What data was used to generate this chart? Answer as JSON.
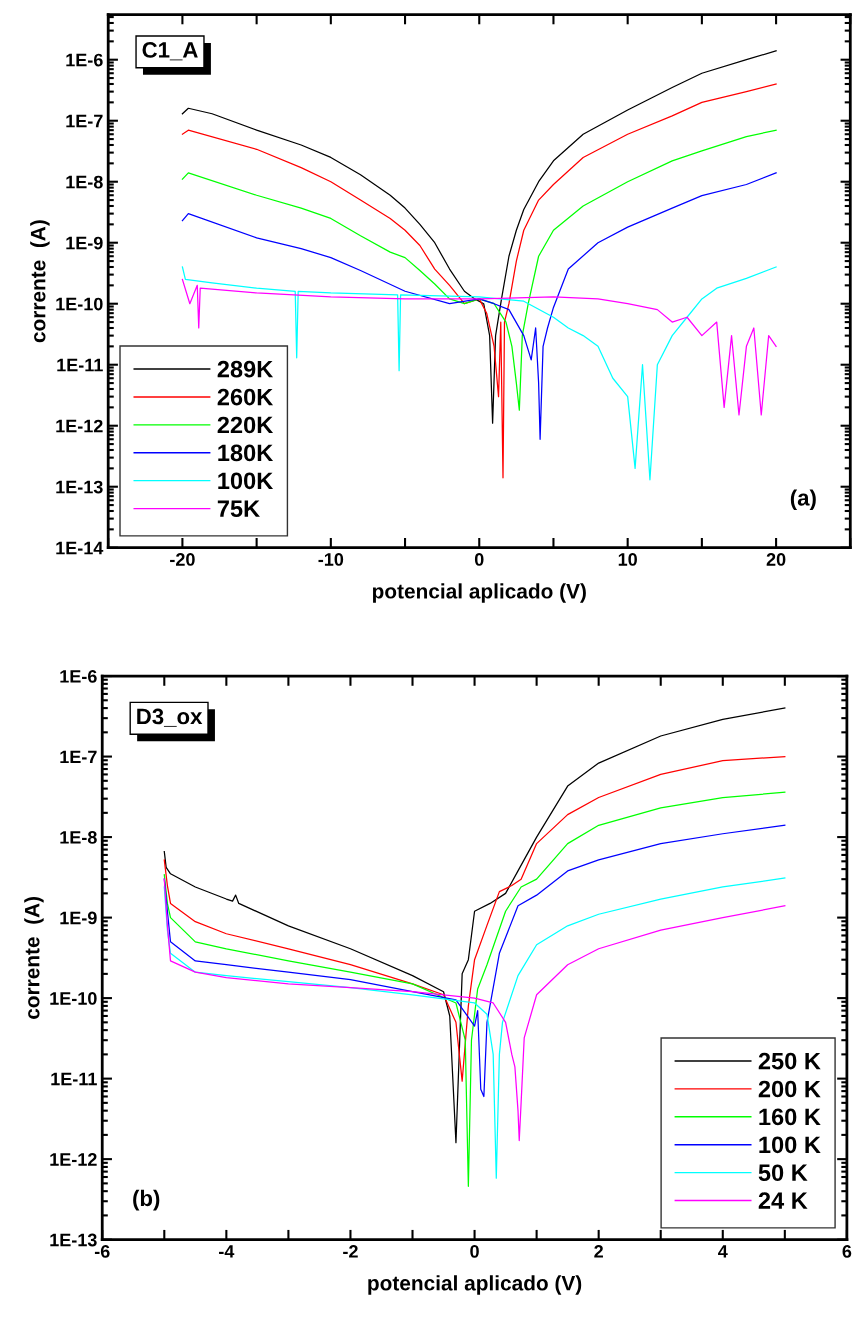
{
  "chart_data": [
    {
      "type": "line",
      "xlabel": "potencial aplicado (V)",
      "ylabel": "corrente  (A)",
      "log": "y",
      "legend": "bottom left",
      "grid": false,
      "xlim": [
        -25,
        25
      ],
      "xticks": [
        {
          "value": -25,
          "label": null
        },
        -20,
        {
          "value": -15,
          "label": null
        },
        -10,
        {
          "value": -5,
          "label": null
        },
        0,
        {
          "value": 5,
          "label": null
        },
        10,
        {
          "value": 15,
          "label": null
        },
        20,
        {
          "value": 25,
          "label": null
        }
      ],
      "ylim": [
        1e-14,
        5.5e-06
      ],
      "yticks": [
        {
          "value": 1e-14,
          "label": "1E-14"
        },
        {
          "value": 1e-13,
          "label": "1E-13"
        },
        {
          "value": 1e-12,
          "label": "1E-12"
        },
        {
          "value": 1e-11,
          "label": "1E-11"
        },
        {
          "value": 1e-10,
          "label": "1E-10"
        },
        {
          "value": 1e-09,
          "label": "1E-9"
        },
        {
          "value": 1e-08,
          "label": "1E-8"
        },
        {
          "value": 1e-07,
          "label": "1E-7"
        },
        {
          "value": 1e-06,
          "label": "1E-6"
        }
      ],
      "annotations": [
        "C1_A",
        "(a)"
      ],
      "series": [
        {
          "name": "289K",
          "color": "#000000",
          "x": [
            -20,
            -19.6,
            -18,
            -15,
            -12,
            -10,
            -8,
            -6,
            -5,
            -4,
            -3,
            -2,
            -1,
            -0.3,
            0.3,
            0.7,
            0.9,
            1.1,
            1.5,
            2,
            2.5,
            3,
            4,
            5,
            7,
            10,
            13,
            15,
            18,
            20
          ],
          "values": [
            1.3e-07,
            1.6e-07,
            1.3e-07,
            7e-08,
            4e-08,
            2.5e-08,
            1.3e-08,
            6e-09,
            3.7e-09,
            2e-09,
            1e-09,
            3.7e-10,
            1.6e-10,
            1.2e-10,
            1e-10,
            3e-11,
            1.1e-12,
            3e-11,
            1.2e-10,
            6e-10,
            1.6e-09,
            3.5e-09,
            1e-08,
            2.2e-08,
            6e-08,
            1.5e-07,
            3.5e-07,
            6e-07,
            1e-06,
            1.4e-06
          ]
        },
        {
          "name": "260K",
          "color": "#ff0000",
          "x": [
            -20,
            -19.6,
            -15,
            -12,
            -10,
            -8,
            -6,
            -5,
            -4,
            -3,
            -2,
            -1,
            0,
            0.5,
            1,
            1.3,
            1.45,
            1.6,
            1.7,
            2,
            2.5,
            3,
            4,
            5,
            7,
            10,
            13,
            15,
            18,
            20
          ],
          "values": [
            6e-08,
            7e-08,
            3.4e-08,
            1.7e-08,
            1e-08,
            5e-09,
            2.5e-09,
            1.6e-09,
            9e-10,
            3.7e-10,
            2e-10,
            1e-10,
            1.2e-10,
            7e-11,
            2e-11,
            3e-12,
            5e-11,
            1.4e-13,
            5e-11,
            1e-10,
            5e-10,
            1.6e-09,
            5e-09,
            9e-09,
            2.5e-08,
            6e-08,
            1.2e-07,
            2e-07,
            3e-07,
            4e-07
          ]
        },
        {
          "name": "220K",
          "color": "#00ff00",
          "x": [
            -20,
            -19.6,
            -15,
            -12,
            -10,
            -8,
            -6,
            -5,
            -4,
            -3,
            -2,
            -1,
            0,
            1,
            1.8,
            2.2,
            2.5,
            2.7,
            2.9,
            3.3,
            4,
            5,
            7,
            10,
            13,
            15,
            18,
            20
          ],
          "values": [
            1.1e-08,
            1.4e-08,
            6e-09,
            3.7e-09,
            2.5e-09,
            1.3e-09,
            7e-10,
            5.7e-10,
            3.5e-10,
            2.1e-10,
            1.2e-10,
            1e-10,
            1.2e-10,
            1e-10,
            5e-11,
            2e-11,
            5e-12,
            1.8e-12,
            3e-11,
            1e-10,
            6e-10,
            1.6e-09,
            4e-09,
            1e-08,
            2.2e-08,
            3.2e-08,
            5.5e-08,
            7e-08
          ]
        },
        {
          "name": "180K",
          "color": "#0000ff",
          "x": [
            -20,
            -19.6,
            -15,
            -12,
            -10,
            -8,
            -5,
            -2,
            0,
            1,
            2,
            3,
            3.5,
            3.8,
            4,
            4.1,
            4.3,
            4.6,
            5,
            6,
            8,
            10,
            13,
            15,
            18,
            20
          ],
          "values": [
            2.3e-09,
            3e-09,
            1.2e-09,
            8e-10,
            5.7e-10,
            3.5e-10,
            1.6e-10,
            1e-10,
            1.2e-10,
            1e-10,
            8e-11,
            3e-11,
            1.2e-11,
            4e-11,
            5e-12,
            6e-13,
            2e-11,
            4e-11,
            8.7e-11,
            3.7e-10,
            1e-09,
            1.8e-09,
            3.7e-09,
            5.9e-09,
            9e-09,
            1.4e-08
          ]
        },
        {
          "name": "100K",
          "color": "#00ffff",
          "x": [
            -20,
            -19.8,
            -18,
            -15,
            -12.4,
            -12.3,
            -12.2,
            -10,
            -5.5,
            -5.4,
            -5.3,
            0,
            3,
            5,
            6,
            7,
            8,
            9,
            10,
            10.5,
            11,
            11.5,
            12,
            13,
            14,
            15,
            16,
            18,
            20
          ],
          "values": [
            4e-10,
            2.5e-10,
            2.2e-10,
            1.8e-10,
            1.6e-10,
            1.3e-11,
            1.6e-10,
            1.5e-10,
            1.4e-10,
            8e-12,
            1.4e-10,
            1.3e-10,
            1.1e-10,
            6e-11,
            4e-11,
            3e-11,
            2e-11,
            6e-12,
            3e-12,
            2e-13,
            1e-11,
            1.3e-13,
            1e-11,
            3e-11,
            6e-11,
            1.2e-10,
            1.8e-10,
            2.6e-10,
            4e-10
          ]
        },
        {
          "name": "75K",
          "color": "#ff00ff",
          "x": [
            -20,
            -19.5,
            -19,
            -18.9,
            -18.8,
            -15,
            -10,
            -5,
            0,
            5,
            8,
            10,
            12,
            13,
            14,
            15,
            16,
            16.5,
            17,
            17.5,
            18,
            18.5,
            19,
            19.5,
            20
          ],
          "values": [
            2.5e-10,
            1e-10,
            2e-10,
            4e-11,
            1.8e-10,
            1.5e-10,
            1.3e-10,
            1.2e-10,
            1.2e-10,
            1.3e-10,
            1.2e-10,
            1e-10,
            8e-11,
            5e-11,
            6e-11,
            3e-11,
            5e-11,
            2e-12,
            3e-11,
            1.5e-12,
            2e-11,
            4e-11,
            1.5e-12,
            3e-11,
            2e-11
          ]
        }
      ]
    },
    {
      "type": "line",
      "xlabel": "potencial aplicado (V)",
      "ylabel": "corrente  (A)",
      "log": "y",
      "legend": "bottom right",
      "grid": false,
      "xlim": [
        -6,
        6
      ],
      "xticks": [
        -6,
        {
          "value": -5,
          "label": null
        },
        -4,
        {
          "value": -3,
          "label": null
        },
        -2,
        {
          "value": -1,
          "label": null
        },
        0,
        {
          "value": 1,
          "label": null
        },
        2,
        {
          "value": 3,
          "label": null
        },
        4,
        {
          "value": 5,
          "label": null
        },
        6
      ],
      "ylim": [
        1e-13,
        1e-06
      ],
      "yticks": [
        {
          "value": 1e-13,
          "label": "1E-13"
        },
        {
          "value": 1e-12,
          "label": "1E-12"
        },
        {
          "value": 1e-11,
          "label": "1E-11"
        },
        {
          "value": 1e-10,
          "label": "1E-10"
        },
        {
          "value": 1e-09,
          "label": "1E-9"
        },
        {
          "value": 1e-08,
          "label": "1E-8"
        },
        {
          "value": 1e-07,
          "label": "1E-7"
        },
        {
          "value": 1e-06,
          "label": "1E-6"
        }
      ],
      "annotations": [
        "D3_ox",
        "(b)"
      ],
      "series": [
        {
          "name": "250 K",
          "color": "#000000",
          "x": [
            -5,
            -4.97,
            -4.9,
            -4.5,
            -4,
            -3.9,
            -3.85,
            -3.8,
            -3,
            -2,
            -1,
            -0.5,
            -0.4,
            -0.3,
            -0.2,
            -0.1,
            0,
            0.25,
            0.5,
            0.7,
            1,
            1.5,
            2,
            3,
            4,
            5
          ],
          "values": [
            6.6e-09,
            4.2e-09,
            3.5e-09,
            2.4e-09,
            1.7e-09,
            1.6e-09,
            1.9e-09,
            1.5e-09,
            7.9e-10,
            4.1e-10,
            1.9e-10,
            1.2e-10,
            6e-11,
            1.6e-12,
            2e-10,
            3e-10,
            1.2e-09,
            1.5e-09,
            2e-09,
            3.8e-09,
            1e-08,
            4.3e-08,
            8.3e-08,
            1.8e-07,
            2.9e-07,
            4e-07
          ]
        },
        {
          "name": "200 K",
          "color": "#ff0000",
          "x": [
            -5,
            -4.95,
            -4.9,
            -4.5,
            -4,
            -3,
            -2,
            -1,
            -0.5,
            -0.3,
            -0.2,
            -0.1,
            0,
            0.2,
            0.4,
            0.6,
            0.75,
            1,
            1.5,
            2,
            3,
            4,
            5
          ],
          "values": [
            5.2e-09,
            2.5e-09,
            1.5e-09,
            8.9e-10,
            6.3e-10,
            4.1e-10,
            2.6e-10,
            1.5e-10,
            1.1e-10,
            5e-11,
            9.3e-12,
            8e-11,
            3e-10,
            8e-10,
            2.1e-09,
            2.5e-09,
            3e-09,
            8.3e-09,
            1.9e-08,
            3.1e-08,
            6e-08,
            8.9e-08,
            1e-07
          ]
        },
        {
          "name": "160 K",
          "color": "#00ff00",
          "x": [
            -5,
            -4.95,
            -4.9,
            -4.5,
            -4,
            -3,
            -2,
            -1,
            -0.3,
            -0.15,
            -0.1,
            -0.05,
            0.05,
            0.2,
            0.5,
            0.75,
            1,
            1.5,
            2,
            3,
            4,
            5
          ],
          "values": [
            3.4e-09,
            1.5e-09,
            1e-09,
            5e-10,
            4.1e-10,
            2.9e-10,
            2.1e-10,
            1.5e-10,
            8.7e-11,
            3e-11,
            4.6e-13,
            3e-11,
            1.3e-10,
            2.6e-10,
            1.2e-09,
            2.4e-09,
            3e-09,
            8.3e-09,
            1.4e-08,
            2.3e-08,
            3.1e-08,
            3.6e-08
          ]
        },
        {
          "name": "100 K",
          "color": "#0000ff",
          "x": [
            -5,
            -4.95,
            -4.9,
            -4.5,
            -4,
            -3,
            -2,
            -1,
            -0.3,
            0,
            0.05,
            0.1,
            0.15,
            0.2,
            0.4,
            0.7,
            1,
            1.5,
            2,
            3,
            4,
            5
          ],
          "values": [
            3e-09,
            1.2e-09,
            5e-10,
            2.9e-10,
            2.6e-10,
            2.1e-10,
            1.7e-10,
            1.2e-10,
            9.5e-11,
            4.5e-11,
            7e-11,
            7.4e-12,
            6e-12,
            5e-11,
            3.6e-10,
            1.4e-09,
            1.9e-09,
            3.8e-09,
            5.2e-09,
            8.3e-09,
            1.1e-08,
            1.4e-08
          ]
        },
        {
          "name": "50 K",
          "color": "#00ffff",
          "x": [
            -5,
            -4.95,
            -4.9,
            -4.5,
            -4,
            -3,
            -2,
            -1,
            0,
            0.2,
            0.3,
            0.35,
            0.4,
            0.45,
            0.7,
            1,
            1.5,
            2,
            3,
            4,
            5
          ],
          "values": [
            2.4e-09,
            7e-10,
            3.6e-10,
            2.1e-10,
            1.9e-10,
            1.6e-10,
            1.35e-10,
            1.1e-10,
            8.7e-11,
            6.3e-11,
            2e-11,
            5.8e-13,
            2e-11,
            5e-11,
            1.9e-10,
            4.6e-10,
            7.9e-10,
            1.1e-09,
            1.7e-09,
            2.4e-09,
            3.1e-09
          ]
        },
        {
          "name": "24 K",
          "color": "#ff00ff",
          "x": [
            -5,
            -4.95,
            -4.9,
            -4.5,
            -4,
            -3,
            -2,
            -1,
            0,
            0.3,
            0.5,
            0.6,
            0.65,
            0.7,
            0.72,
            0.75,
            0.8,
            1,
            1.5,
            2,
            3,
            4,
            5
          ],
          "values": [
            3e-09,
            8e-10,
            2.9e-10,
            2.1e-10,
            1.8e-10,
            1.5e-10,
            1.35e-10,
            1.2e-10,
            1e-10,
            8.7e-11,
            5e-11,
            2e-11,
            1.4e-11,
            4e-12,
            1.7e-12,
            5e-12,
            3.2e-11,
            1.1e-10,
            2.6e-10,
            4.1e-10,
            7e-10,
            1e-09,
            1.4e-09
          ]
        }
      ]
    }
  ]
}
